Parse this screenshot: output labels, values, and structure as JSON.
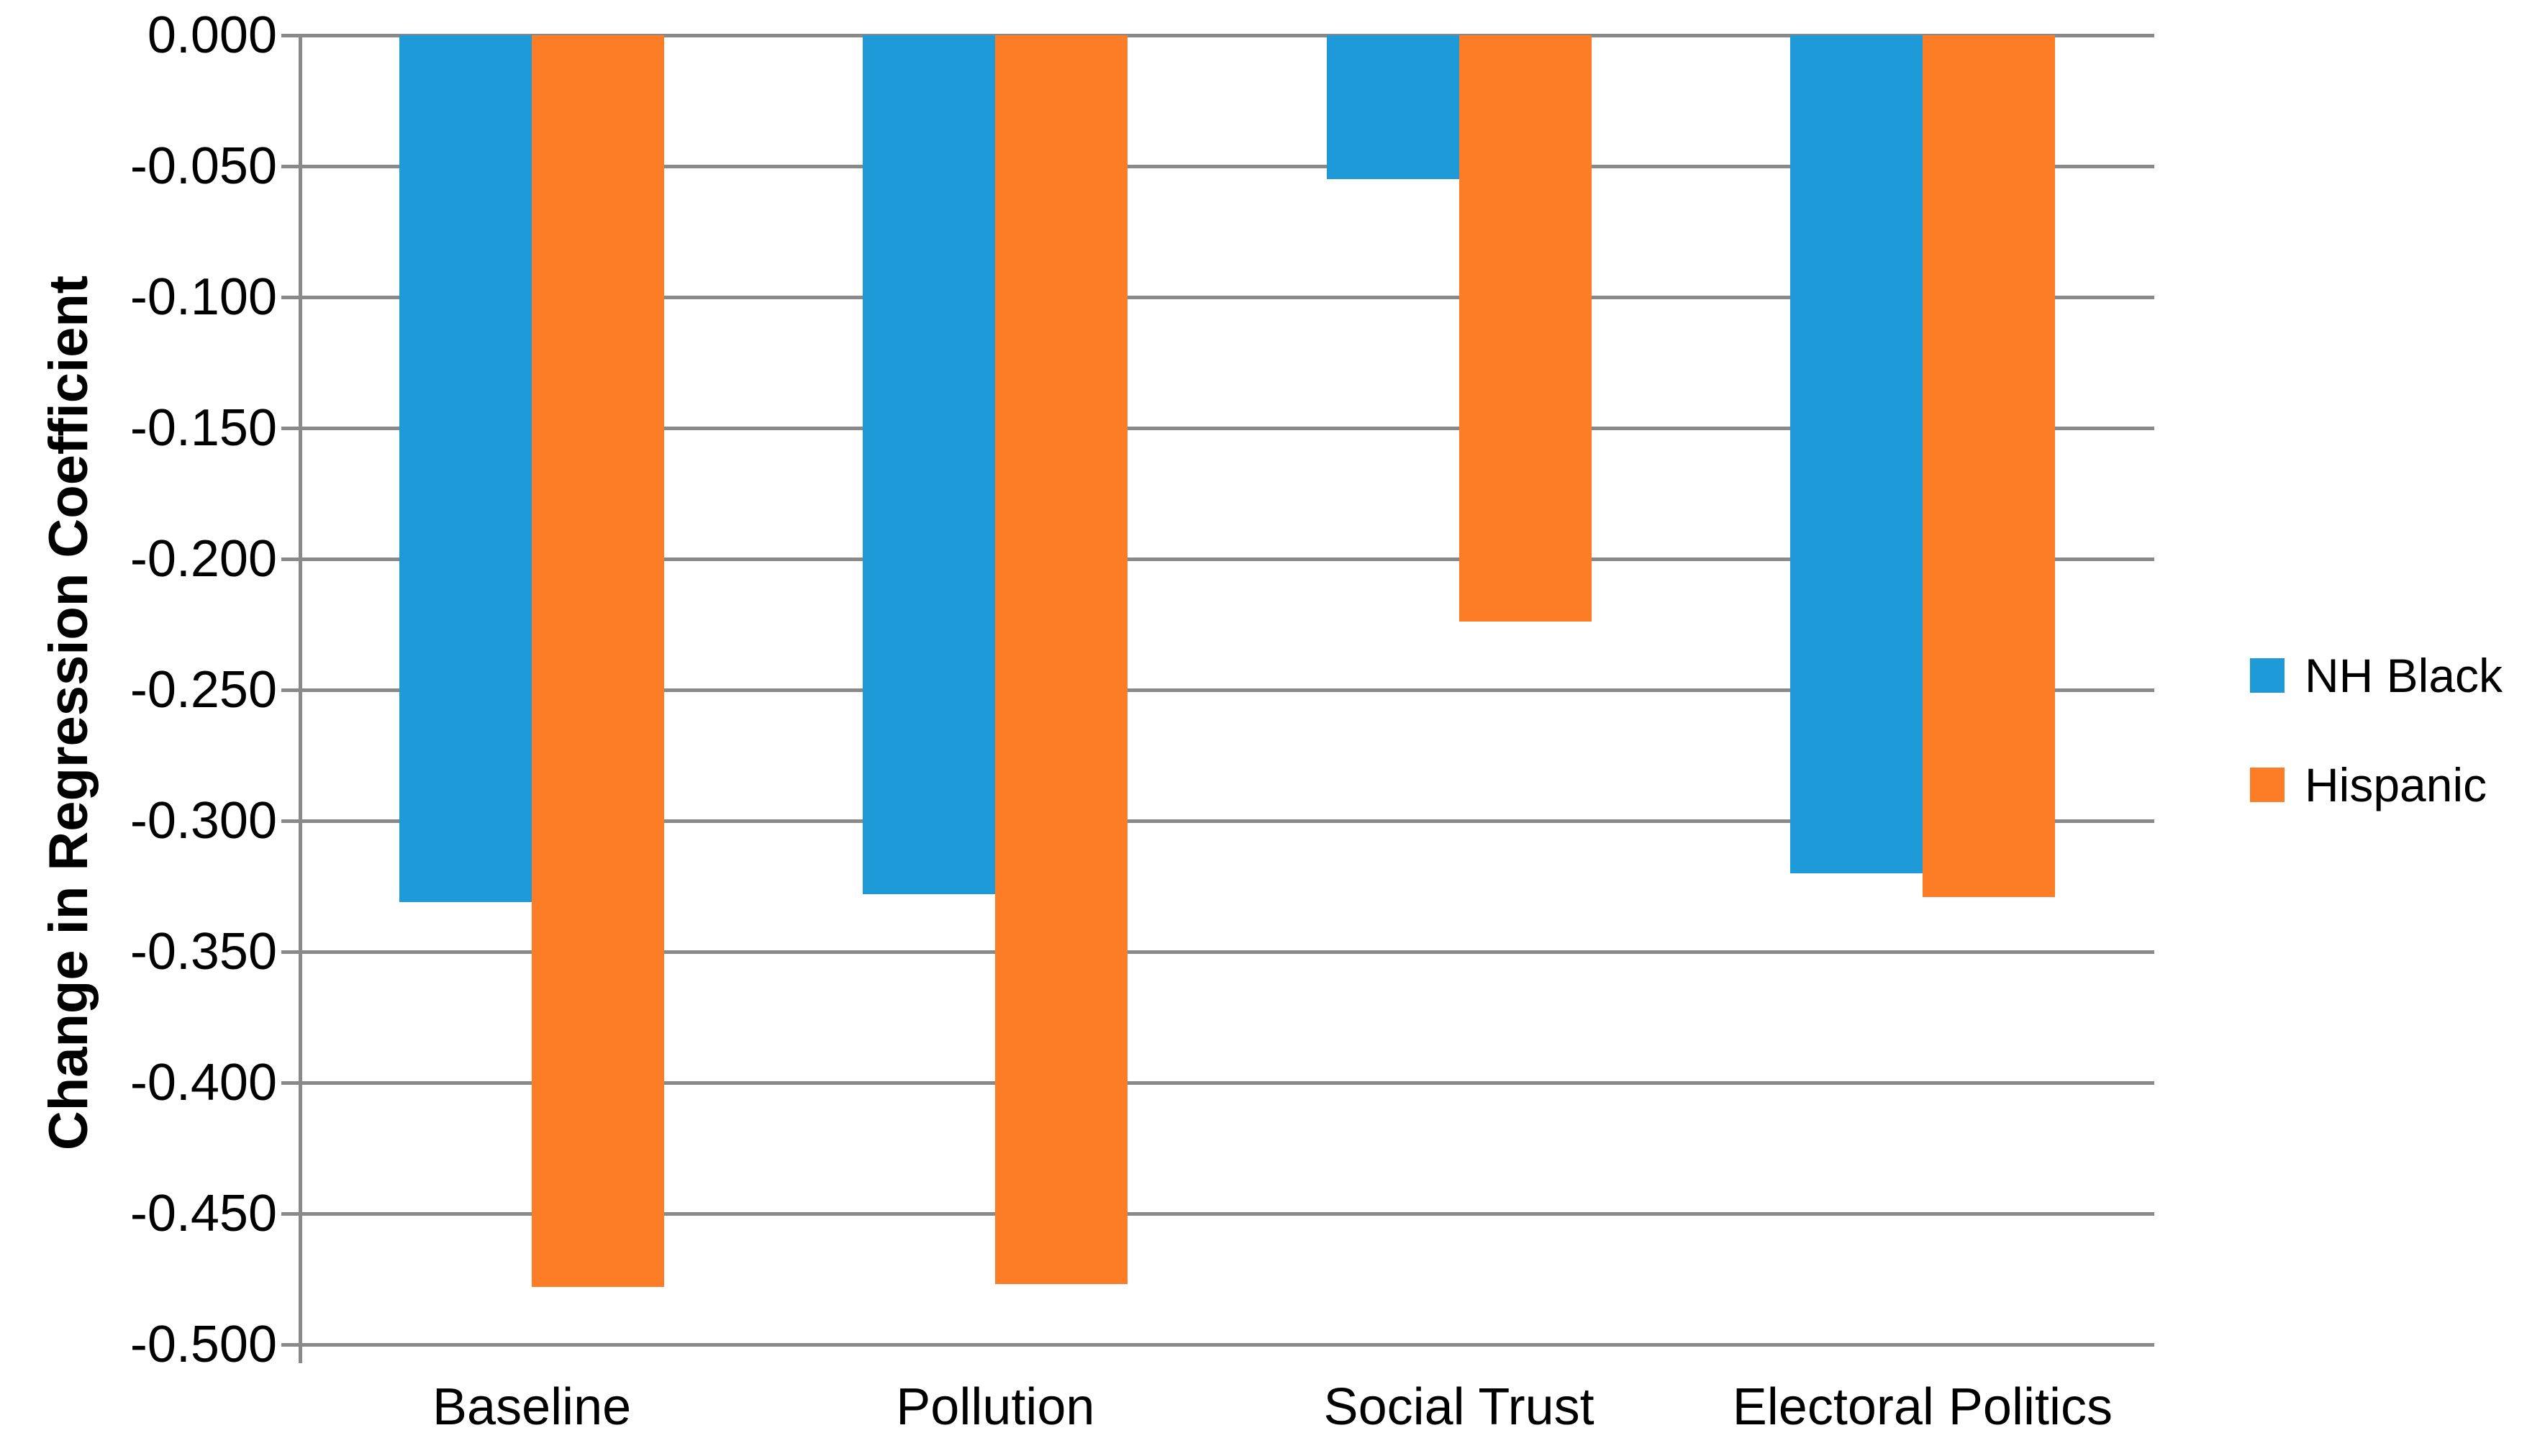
{
  "chart_data": {
    "type": "bar",
    "title": "",
    "ylabel": "Change in Regression Coefficient",
    "xlabel": "",
    "categories": [
      "Baseline",
      "Pollution",
      "Social Trust",
      "Electoral Politics"
    ],
    "series": [
      {
        "name": "NH Black",
        "color": "#1D9AD7",
        "values": [
          -0.331,
          -0.328,
          -0.055,
          -0.32
        ]
      },
      {
        "name": "Hispanic",
        "color": "#FD7D27",
        "values": [
          -0.478,
          -0.477,
          -0.224,
          -0.329
        ]
      }
    ],
    "ylim": [
      -0.5,
      0
    ],
    "ytick_step": 0.05,
    "yticks": [
      "0.000",
      "-0.050",
      "-0.100",
      "-0.150",
      "-0.200",
      "-0.250",
      "-0.300",
      "-0.350",
      "-0.400",
      "-0.450",
      "-0.500"
    ],
    "grid": true,
    "legend_position": "right",
    "gridline_color": "#898989",
    "axis_color": "#898989",
    "text_color": "#000000",
    "background_color": "#FFFFFF"
  }
}
